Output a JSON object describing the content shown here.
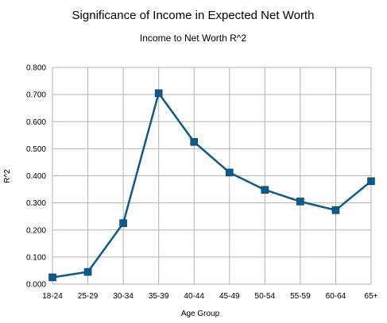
{
  "chart_data": {
    "type": "line",
    "title": "Significance of Income in Expected Net Worth",
    "subtitle": "Income to Net Worth R^2",
    "xlabel": "Age Group",
    "ylabel": "R^2",
    "categories": [
      "18-24",
      "25-29",
      "30-34",
      "35-39",
      "40-44",
      "45-49",
      "50-54",
      "55-59",
      "60-64",
      "65+"
    ],
    "series": [
      {
        "values": [
          0.025,
          0.045,
          0.225,
          0.705,
          0.525,
          0.412,
          0.348,
          0.305,
          0.273,
          0.38
        ],
        "color": "#0f5a8c",
        "marker": "square"
      }
    ],
    "ylim": [
      0,
      0.8
    ],
    "yticks": [
      0,
      0.1,
      0.2,
      0.3,
      0.4,
      0.5,
      0.6,
      0.7,
      0.8
    ],
    "ytick_labels": [
      "0.000",
      "0.100",
      "0.200",
      "0.300",
      "0.400",
      "0.500",
      "0.600",
      "0.700",
      "0.800"
    ],
    "grid": true,
    "legend": "none",
    "grid_color": "#b3b3b3"
  }
}
